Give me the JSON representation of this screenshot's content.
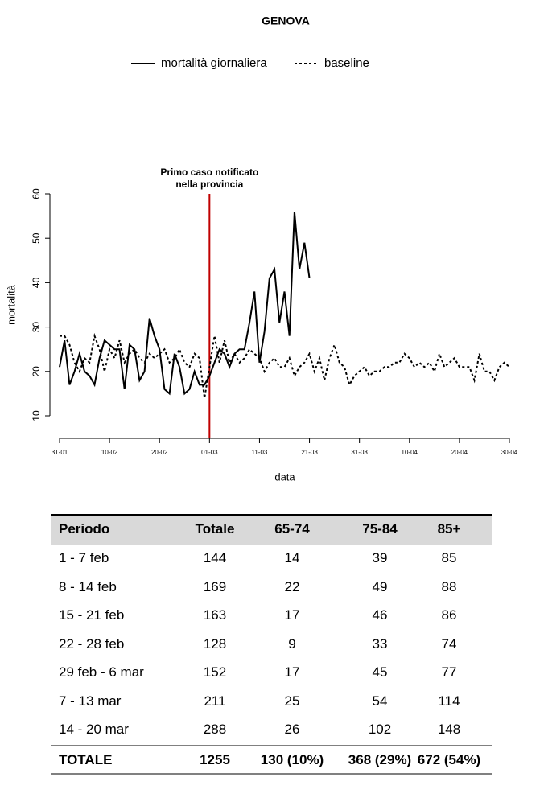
{
  "chart_data": {
    "type": "line",
    "title": "GENOVA",
    "xlabel": "data",
    "ylabel": "mortalità",
    "categories": [
      "31-01",
      null,
      null,
      null,
      null,
      null,
      null,
      null,
      null,
      null,
      "10-02",
      null,
      null,
      null,
      null,
      null,
      null,
      null,
      null,
      null,
      "20-02",
      null,
      null,
      null,
      null,
      null,
      null,
      null,
      null,
      null,
      "01-03",
      null,
      null,
      null,
      null,
      null,
      null,
      null,
      null,
      null,
      "11-03",
      null,
      null,
      null,
      null,
      null,
      null,
      null,
      null,
      null,
      "21-03",
      null,
      null,
      null,
      null,
      null,
      null,
      null,
      null,
      null,
      "31-03",
      null,
      null,
      null,
      null,
      null,
      null,
      null,
      null,
      null,
      "10-04",
      null,
      null,
      null,
      null,
      null,
      null,
      null,
      null,
      null,
      "20-04",
      null,
      null,
      null,
      null,
      null,
      null,
      null,
      null,
      null,
      "30-04"
    ],
    "series": [
      {
        "name": "mortalità giornaliera",
        "color": "#000000",
        "dash": "solid",
        "values": [
          21,
          27,
          17,
          20,
          24,
          20,
          19,
          17,
          23,
          27,
          26,
          25,
          25,
          16,
          26,
          25,
          18,
          20,
          32,
          28,
          25,
          16,
          15,
          24,
          21,
          15,
          16,
          20,
          17,
          17,
          19,
          22,
          25,
          24,
          21,
          24,
          25,
          25,
          31,
          38,
          22,
          29,
          41,
          43,
          31,
          38,
          28,
          56,
          43,
          49,
          41,
          null,
          null,
          null,
          null,
          null,
          null,
          null,
          null,
          null,
          null,
          null,
          null,
          null,
          null,
          null,
          null,
          null,
          null,
          null,
          null,
          null,
          null,
          null,
          null,
          null,
          null,
          null,
          null,
          null,
          null,
          null,
          null,
          null,
          null,
          null,
          null,
          null,
          null,
          null,
          null
        ]
      },
      {
        "name": "baseline",
        "color": "#000000",
        "dash": "dotted",
        "values": [
          28,
          28,
          26,
          22,
          20,
          23,
          22,
          28,
          25,
          20,
          25,
          23,
          27,
          22,
          24,
          25,
          23,
          22,
          24,
          23,
          24,
          25,
          22,
          23,
          25,
          22,
          21,
          24,
          23,
          14,
          21,
          28,
          22,
          27,
          22,
          24,
          22,
          23,
          25,
          24,
          23,
          20,
          22,
          23,
          21,
          21,
          23,
          19,
          21,
          22,
          24,
          20,
          23,
          18,
          23,
          26,
          22,
          21,
          17,
          19,
          20,
          21,
          19,
          20,
          20,
          21,
          21,
          22,
          22,
          24,
          23,
          21,
          22,
          21,
          22,
          20,
          24,
          21,
          22,
          23,
          21,
          21,
          21,
          18,
          24,
          20,
          20,
          18,
          21,
          22,
          21
        ]
      }
    ],
    "ylim": [
      10,
      60
    ],
    "yticks": [
      10,
      20,
      30,
      40,
      50,
      60
    ],
    "vline": {
      "at": "01-03",
      "color": "#c00000",
      "label": [
        "Primo caso notificato",
        "nella provincia"
      ]
    },
    "legend": "top"
  },
  "table": {
    "header": [
      "Periodo",
      "Totale",
      "65-74",
      "75-84",
      "85+"
    ],
    "rows": [
      [
        "1 - 7 feb",
        144,
        14,
        39,
        85
      ],
      [
        "8 - 14 feb",
        169,
        22,
        49,
        88
      ],
      [
        "15 - 21 feb",
        163,
        17,
        46,
        86
      ],
      [
        "22 - 28 feb",
        128,
        9,
        33,
        74
      ],
      [
        "29 feb - 6 mar",
        152,
        17,
        45,
        77
      ],
      [
        "7 - 13 mar",
        211,
        25,
        54,
        114
      ],
      [
        "14 - 20 mar",
        288,
        26,
        102,
        148
      ]
    ],
    "total": [
      "TOTALE",
      1255,
      "130 (10%)",
      "368 (29%)",
      "672 (54%)"
    ]
  }
}
